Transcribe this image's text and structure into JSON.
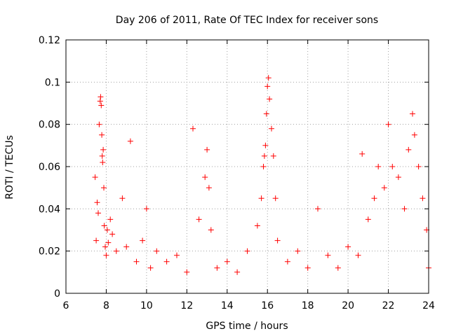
{
  "chart_data": {
    "type": "scatter",
    "title": "Day 206 of 2011, Rate Of TEC Index for receiver sons",
    "xlabel": "GPS time / hours",
    "ylabel": "ROTI / TECUs",
    "xlim": [
      6,
      24
    ],
    "ylim": [
      0,
      0.12
    ],
    "x_ticks": [
      6,
      8,
      10,
      12,
      14,
      16,
      18,
      20,
      22,
      24
    ],
    "x_tick_labels": [
      "6",
      "8",
      "10",
      "12",
      "14",
      "16",
      "18",
      "20",
      "22",
      "24"
    ],
    "y_ticks": [
      0,
      0.02,
      0.04,
      0.06,
      0.08,
      0.1,
      0.12
    ],
    "y_tick_labels": [
      "0",
      "0.02",
      "0.04",
      "0.06",
      "0.08",
      "0.1",
      "0.12"
    ],
    "grid": true,
    "marker": "+",
    "marker_color": "#ff0000",
    "series": [
      {
        "name": "ROTI",
        "x": [
          7.45,
          7.5,
          7.55,
          7.6,
          7.65,
          7.7,
          7.72,
          7.75,
          7.78,
          7.8,
          7.82,
          7.85,
          7.88,
          7.9,
          7.95,
          8.0,
          8.05,
          8.1,
          8.2,
          8.3,
          8.5,
          8.8,
          9.0,
          9.2,
          9.5,
          9.8,
          10.0,
          10.2,
          10.5,
          11.0,
          11.5,
          12.0,
          12.3,
          12.6,
          12.9,
          13.0,
          13.1,
          13.2,
          13.5,
          14.0,
          14.5,
          15.0,
          15.5,
          15.7,
          15.8,
          15.85,
          15.9,
          15.95,
          16.0,
          16.05,
          16.1,
          16.2,
          16.3,
          16.4,
          16.5,
          17.0,
          17.5,
          18.0,
          18.5,
          19.0,
          19.5,
          20.0,
          20.5,
          20.7,
          21.0,
          21.3,
          21.5,
          21.8,
          22.0,
          22.2,
          22.5,
          22.8,
          23.0,
          23.2,
          23.3,
          23.5,
          23.7,
          23.9,
          24.0
        ],
        "y": [
          0.055,
          0.025,
          0.043,
          0.038,
          0.08,
          0.091,
          0.093,
          0.089,
          0.075,
          0.065,
          0.062,
          0.068,
          0.05,
          0.032,
          0.022,
          0.018,
          0.03,
          0.024,
          0.035,
          0.028,
          0.02,
          0.045,
          0.022,
          0.072,
          0.015,
          0.025,
          0.04,
          0.012,
          0.02,
          0.015,
          0.018,
          0.01,
          0.078,
          0.035,
          0.055,
          0.068,
          0.05,
          0.03,
          0.012,
          0.015,
          0.01,
          0.02,
          0.032,
          0.045,
          0.06,
          0.065,
          0.07,
          0.085,
          0.098,
          0.102,
          0.092,
          0.078,
          0.065,
          0.045,
          0.025,
          0.015,
          0.02,
          0.012,
          0.04,
          0.018,
          0.012,
          0.022,
          0.018,
          0.066,
          0.035,
          0.045,
          0.06,
          0.05,
          0.08,
          0.06,
          0.055,
          0.04,
          0.068,
          0.085,
          0.075,
          0.06,
          0.045,
          0.03,
          0.012
        ]
      }
    ]
  }
}
